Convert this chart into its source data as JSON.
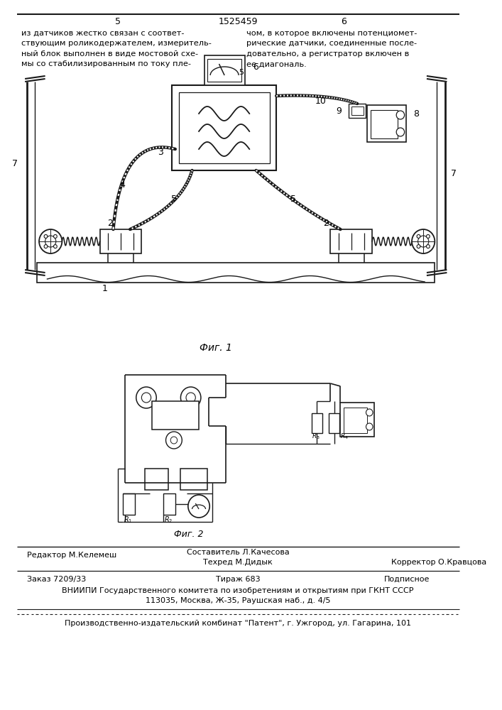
{
  "page_number_left": "5",
  "page_number_right": "6",
  "patent_number": "1525459",
  "header_text_left": "из датчиков жестко связан с соответ-\nствующим роликодержателем, измеритель-\nный блок выполнен в виде мостовой схе-\nмы со стабилизированным по току пле-",
  "header_text_right": "чом, в которое включены потенциомет-\nрические датчики, соединенные после-\nдовательно, а регистратор включен в\nее диагональ.",
  "header_num5": "5",
  "fig1_label": "Фиг. 1",
  "fig2_label": "Фиг. 2",
  "editor_line": "Редактор М.Келемеш",
  "compiler_line": "Составитель Л.Качесова",
  "techred_line": "Техред М.Дидык",
  "corrector_line": "Корректор О.Кравцова",
  "order_line": "Заказ 7209/33",
  "circulation_line": "Тираж 683",
  "subscription_line": "Подписное",
  "vnipi_line": "ВНИИПИ Государственного комитета по изобретениям и открытиям при ГКНТ СССР",
  "address_line": "113035, Москва, Ж-35, Раушская наб., д. 4/5",
  "publisher_line": "Производственно-издательский комбинат \"Патент\", г. Ужгород, ул. Гагарина, 101",
  "bg_color": "#ffffff",
  "line_color": "#1a1a1a",
  "text_color": "#000000"
}
